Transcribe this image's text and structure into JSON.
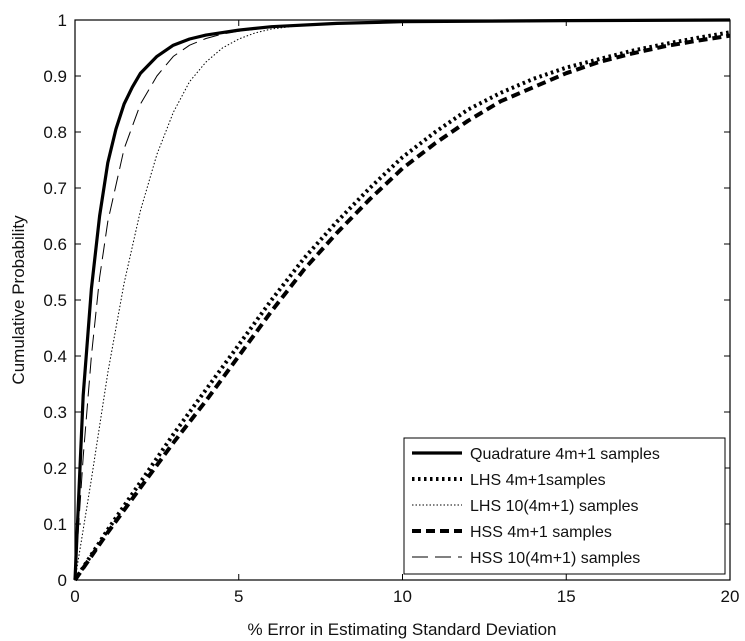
{
  "chart_data": {
    "type": "line",
    "title": "",
    "xlabel": "% Error in Estimating Standard Deviation",
    "ylabel": "Cumulative Probability",
    "xlim": [
      0,
      20
    ],
    "ylim": [
      0,
      1
    ],
    "xticks": [
      0,
      5,
      10,
      15,
      20
    ],
    "yticks": [
      0,
      0.1,
      0.2,
      0.3,
      0.4,
      0.5,
      0.6,
      0.7,
      0.8,
      0.9,
      1
    ],
    "grid": false,
    "legend_position": "bottom-right",
    "series": [
      {
        "name": "Quadrature 4m+1 samples",
        "style": "solid-thick",
        "x": [
          0,
          0.25,
          0.5,
          0.75,
          1.0,
          1.25,
          1.5,
          1.75,
          2.0,
          2.5,
          3.0,
          3.5,
          4.0,
          5.0,
          6.0,
          8.0,
          10.0,
          15.0,
          20.0
        ],
        "y": [
          0,
          0.33,
          0.52,
          0.65,
          0.745,
          0.805,
          0.85,
          0.88,
          0.905,
          0.935,
          0.955,
          0.966,
          0.973,
          0.982,
          0.988,
          0.994,
          0.997,
          0.999,
          1.0
        ]
      },
      {
        "name": "LHS 4m+1samples",
        "style": "dotted-thick",
        "x": [
          0,
          1,
          2,
          3,
          4,
          5,
          6,
          7,
          8,
          9,
          10,
          11,
          12,
          13,
          14,
          15,
          16,
          17,
          18,
          19,
          20
        ],
        "y": [
          0,
          0.09,
          0.175,
          0.26,
          0.34,
          0.42,
          0.5,
          0.575,
          0.64,
          0.7,
          0.755,
          0.8,
          0.84,
          0.87,
          0.895,
          0.915,
          0.93,
          0.945,
          0.957,
          0.968,
          0.978
        ]
      },
      {
        "name": "LHS 10(4m+1) samples",
        "style": "dotted-thin",
        "x": [
          0,
          0.5,
          1.0,
          1.5,
          2.0,
          2.5,
          3.0,
          3.5,
          4.0,
          4.5,
          5.0,
          5.5,
          6.0,
          7.0,
          8.0,
          10.0,
          15.0,
          20.0
        ],
        "y": [
          0,
          0.18,
          0.37,
          0.53,
          0.66,
          0.76,
          0.835,
          0.89,
          0.925,
          0.95,
          0.966,
          0.977,
          0.984,
          0.991,
          0.995,
          0.998,
          1.0,
          1.0
        ]
      },
      {
        "name": "HSS 4m+1 samples",
        "style": "dashed-thick",
        "x": [
          0,
          1,
          2,
          3,
          4,
          5,
          6,
          7,
          8,
          9,
          10,
          11,
          12,
          13,
          14,
          15,
          16,
          17,
          18,
          19,
          20
        ],
        "y": [
          0,
          0.085,
          0.165,
          0.245,
          0.32,
          0.4,
          0.48,
          0.555,
          0.62,
          0.68,
          0.735,
          0.78,
          0.82,
          0.855,
          0.88,
          0.905,
          0.925,
          0.94,
          0.953,
          0.963,
          0.972
        ]
      },
      {
        "name": "HSS 10(4m+1) samples",
        "style": "dashed-thin",
        "x": [
          0,
          0.25,
          0.5,
          0.75,
          1.0,
          1.5,
          2.0,
          2.5,
          3.0,
          3.5,
          4.0,
          4.5,
          5.0,
          6.0,
          8.0,
          10.0,
          15.0,
          20.0
        ],
        "y": [
          0,
          0.22,
          0.4,
          0.54,
          0.64,
          0.77,
          0.85,
          0.9,
          0.935,
          0.955,
          0.967,
          0.975,
          0.98,
          0.987,
          0.993,
          0.996,
          0.999,
          1.0
        ]
      }
    ]
  }
}
